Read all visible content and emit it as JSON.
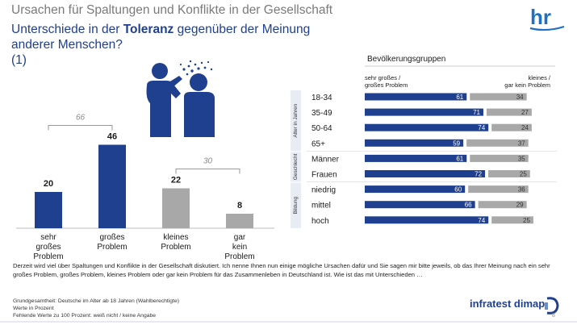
{
  "header": {
    "supertitle": "Ursachen für Spaltungen und Konflikte in der Gesellschaft",
    "title_prefix": "Unterschiede in der ",
    "title_bold": "Toleranz",
    "title_suffix": " gegenüber der Meinung anderer Menschen?",
    "title_number": "(1)",
    "logo_text": "hr"
  },
  "chart_data": [
    {
      "type": "bar",
      "categories": [
        "sehr großes Problem",
        "großes Problem",
        "kleines Problem",
        "gar kein Problem"
      ],
      "values": [
        20,
        46,
        22,
        8
      ],
      "colors": [
        "#1f3f8f",
        "#1f3f8f",
        "#a8a8a8",
        "#a8a8a8"
      ],
      "brackets": [
        {
          "value": "66",
          "from": 0,
          "to": 1
        },
        {
          "value": "30",
          "from": 2,
          "to": 3
        }
      ],
      "ylim": [
        0,
        50
      ]
    },
    {
      "type": "bar",
      "title": "Bevölkerungsgruppen",
      "legend_left": "sehr großes / großes Problem",
      "legend_right": "kleines / gar kein Problem",
      "groups": [
        {
          "name": "Alter in Jahren",
          "rows": [
            "18-34",
            "35-49",
            "50-64",
            "65+"
          ]
        },
        {
          "name": "Geschlecht",
          "rows": [
            "Männer",
            "Frauen"
          ]
        },
        {
          "name": "Bildung",
          "rows": [
            "niedrig",
            "mittel",
            "hoch"
          ]
        }
      ],
      "categories": [
        "18-34",
        "35-49",
        "50-64",
        "65+",
        "Männer",
        "Frauen",
        "niedrig",
        "mittel",
        "hoch"
      ],
      "series": [
        {
          "name": "sehr großes / großes Problem",
          "values": [
            61,
            71,
            74,
            59,
            61,
            72,
            60,
            66,
            74
          ],
          "color": "#1f3f8f"
        },
        {
          "name": "kleines / gar kein Problem",
          "values": [
            34,
            27,
            24,
            37,
            35,
            25,
            36,
            29,
            25
          ],
          "color": "#a8a8a8"
        }
      ]
    }
  ],
  "description": "Derzeit wird viel über Spaltungen und Konflikte in der Gesellschaft diskutiert. Ich nenne Ihnen nun einige mögliche Ursachen dafür und Sie sagen mir bitte jeweils, ob das Ihrer Meinung nach ein sehr großes Problem, großes Problem, kleines Problem oder gar kein Problem für das Zusammenleben in Deutschland ist. Wie ist das mit Unterschieden …",
  "footnotes": [
    "Grundgesamtheit: Deutsche im Alter ab 18 Jahren (Wahlberechtigte)",
    "Werte in Prozent",
    "Fehlende Werte zu 100 Prozent: weiß nicht / keine Angabe"
  ],
  "brand": "infratest dimap",
  "page_number": "8",
  "icons": {
    "logo": "hr-logo-icon",
    "illustration": "people-sneezing-icon",
    "brand": "infratest-dimap-icon"
  }
}
